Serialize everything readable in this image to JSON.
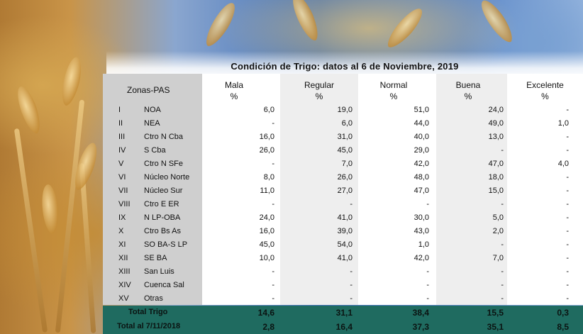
{
  "title": "Condición de Trigo: datos al 6 de Noviembre, 2019",
  "headers": {
    "zones": "Zonas-PAS",
    "cols": [
      {
        "name": "Mala",
        "unit": "%"
      },
      {
        "name": "Regular",
        "unit": "%"
      },
      {
        "name": "Normal",
        "unit": "%"
      },
      {
        "name": "Buena",
        "unit": "%"
      },
      {
        "name": "Excelente",
        "unit": "%"
      }
    ]
  },
  "rows": [
    {
      "roman": "I",
      "zone": "NOA",
      "values": [
        "6,0",
        "19,0",
        "51,0",
        "24,0",
        "-"
      ]
    },
    {
      "roman": "II",
      "zone": "NEA",
      "values": [
        "-",
        "6,0",
        "44,0",
        "49,0",
        "1,0"
      ]
    },
    {
      "roman": "III",
      "zone": "Ctro N Cba",
      "values": [
        "16,0",
        "31,0",
        "40,0",
        "13,0",
        "-"
      ]
    },
    {
      "roman": "IV",
      "zone": "S Cba",
      "values": [
        "26,0",
        "45,0",
        "29,0",
        "-",
        "-"
      ]
    },
    {
      "roman": "V",
      "zone": "Ctro N SFe",
      "values": [
        "-",
        "7,0",
        "42,0",
        "47,0",
        "4,0"
      ]
    },
    {
      "roman": "VI",
      "zone": "Núcleo Norte",
      "values": [
        "8,0",
        "26,0",
        "48,0",
        "18,0",
        "-"
      ]
    },
    {
      "roman": "VII",
      "zone": "Núcleo Sur",
      "values": [
        "11,0",
        "27,0",
        "47,0",
        "15,0",
        "-"
      ]
    },
    {
      "roman": "VIII",
      "zone": "Ctro E ER",
      "values": [
        "-",
        "-",
        "-",
        "-",
        "-"
      ]
    },
    {
      "roman": "IX",
      "zone": "N LP-OBA",
      "values": [
        "24,0",
        "41,0",
        "30,0",
        "5,0",
        "-"
      ]
    },
    {
      "roman": "X",
      "zone": "Ctro Bs As",
      "values": [
        "16,0",
        "39,0",
        "43,0",
        "2,0",
        "-"
      ]
    },
    {
      "roman": "XI",
      "zone": "SO BA-S LP",
      "values": [
        "45,0",
        "54,0",
        "1,0",
        "-",
        "-"
      ]
    },
    {
      "roman": "XII",
      "zone": "SE BA",
      "values": [
        "10,0",
        "41,0",
        "42,0",
        "7,0",
        "-"
      ]
    },
    {
      "roman": "XIII",
      "zone": "San Luis",
      "values": [
        "-",
        "-",
        "-",
        "-",
        "-"
      ]
    },
    {
      "roman": "XIV",
      "zone": "Cuenca Sal",
      "values": [
        "-",
        "-",
        "-",
        "-",
        "-"
      ]
    },
    {
      "roman": "XV",
      "zone": "Otras",
      "values": [
        "-",
        "-",
        "-",
        "-",
        "-"
      ]
    }
  ],
  "totals": [
    {
      "label": "Total Trigo",
      "values": [
        "14,6",
        "31,1",
        "38,4",
        "15,5",
        "0,3"
      ]
    },
    {
      "label": "Total al 7/11/2018",
      "values": [
        "2,8",
        "16,4",
        "37,3",
        "35,1",
        "8,5"
      ]
    }
  ],
  "colors": {
    "total_band": "#1f6b60"
  }
}
